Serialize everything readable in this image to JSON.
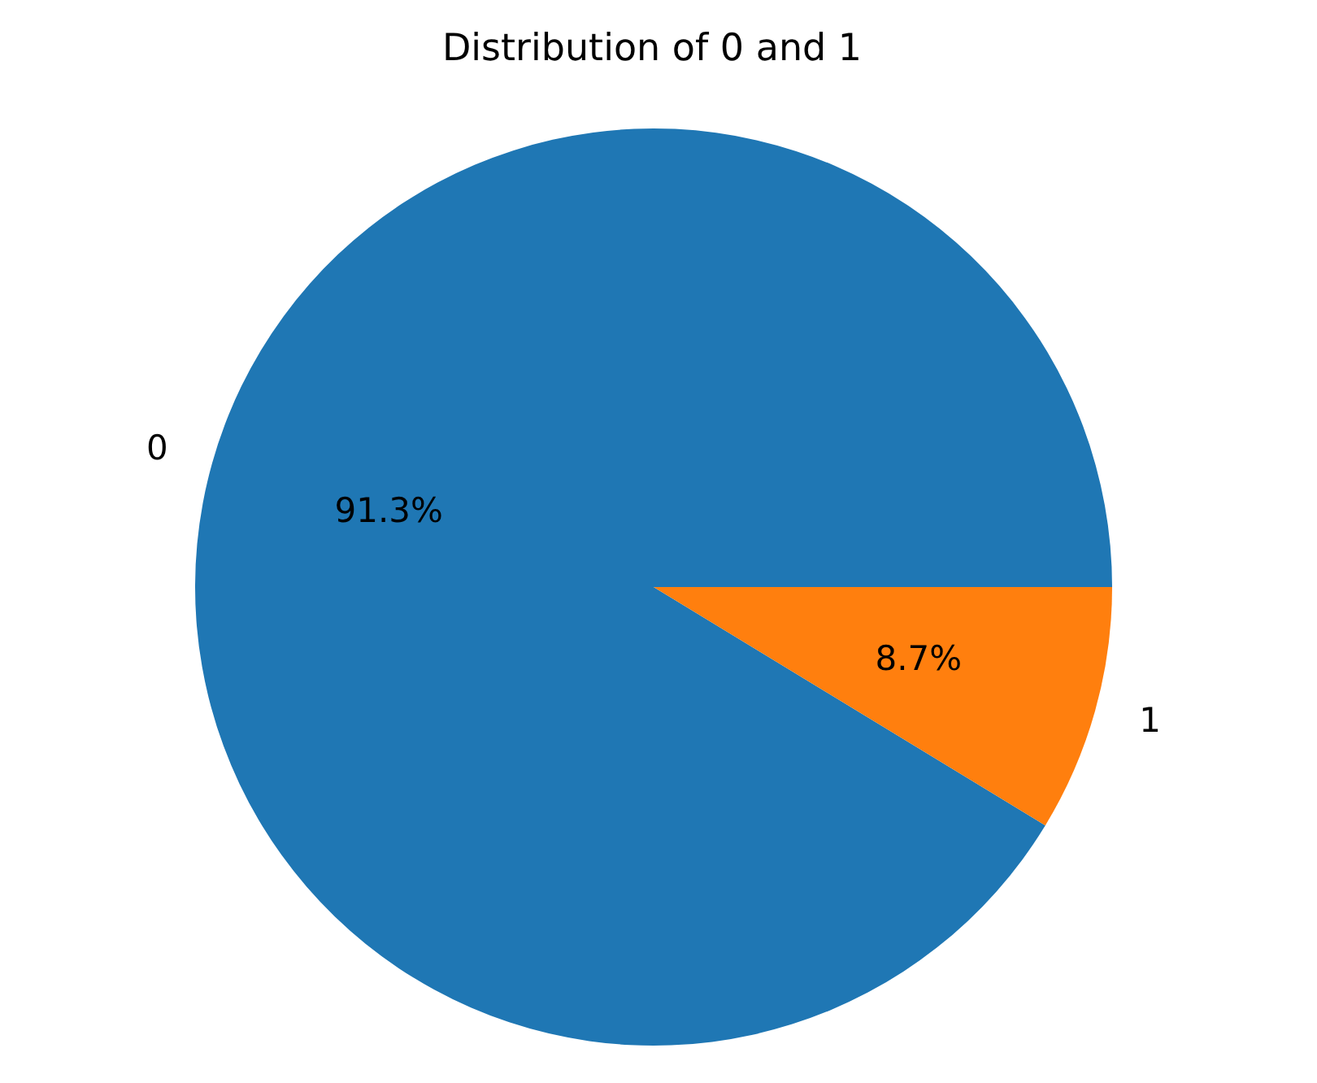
{
  "chart_data": {
    "type": "pie",
    "title": "Distribution of 0 and 1",
    "categories": [
      "0",
      "1"
    ],
    "values": [
      91.3,
      8.7
    ],
    "colors": [
      "#1f77b4",
      "#ff7f0e"
    ],
    "value_labels": [
      "91.3%",
      "8.7%"
    ]
  }
}
